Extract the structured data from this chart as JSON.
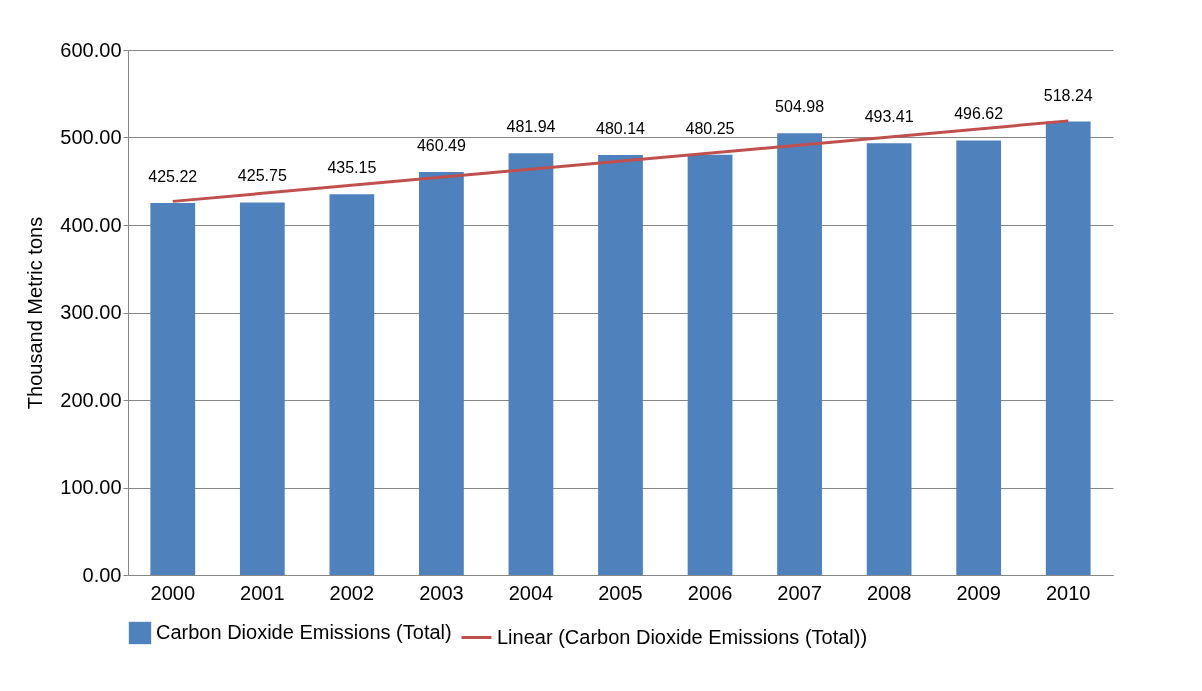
{
  "chart_data": {
    "type": "bar",
    "ylabel": "Thousand Metric tons",
    "categories": [
      "2000",
      "2001",
      "2002",
      "2003",
      "2004",
      "2005",
      "2006",
      "2007",
      "2008",
      "2009",
      "2010"
    ],
    "series": [
      {
        "name": "Carbon Dioxide Emissions (Total)",
        "color": "#4f81bd",
        "values": [
          425.22,
          425.75,
          435.15,
          460.49,
          481.94,
          480.14,
          480.25,
          504.98,
          493.41,
          496.62,
          518.24
        ],
        "value_labels": [
          "425.22",
          "425.75",
          "435.15",
          "460.49",
          "481.94",
          "480.14",
          "480.25",
          "504.98",
          "493.41",
          "496.62",
          "518.24"
        ]
      },
      {
        "name": "Linear (Carbon Dioxide Emissions (Total))",
        "type": "line",
        "color": "#c0504d",
        "values": [
          427,
          null,
          null,
          null,
          null,
          null,
          null,
          null,
          null,
          null,
          519
        ]
      }
    ],
    "ylim": [
      0,
      600
    ],
    "yticks": [
      {
        "value": 0,
        "label": "0.00"
      },
      {
        "value": 100,
        "label": "100.00"
      },
      {
        "value": 200,
        "label": "200.00"
      },
      {
        "value": 300,
        "label": "300.00"
      },
      {
        "value": 400,
        "label": "400.00"
      },
      {
        "value": 500,
        "label": "500.00"
      },
      {
        "value": 600,
        "label": "600.00"
      }
    ],
    "grid": "y",
    "legend": "bottom"
  }
}
